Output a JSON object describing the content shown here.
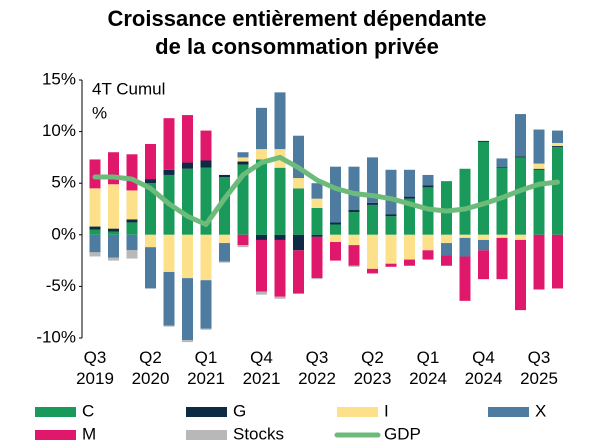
{
  "chart_data": {
    "type": "bar",
    "title": [
      "Croissance entièrement dépendante",
      "de la consommation privée"
    ],
    "annotations": [
      "4T Cumul",
      "%"
    ],
    "categories": [
      "Q3 2019",
      null,
      null,
      "Q2 2020",
      null,
      null,
      "Q1 2021",
      null,
      null,
      "Q4 2021",
      null,
      null,
      "Q3 2022",
      null,
      null,
      "Q2 2023",
      null,
      null,
      "Q1 2024",
      null,
      null,
      "Q4 2024",
      null,
      null,
      "Q3 2025",
      null
    ],
    "ylim": [
      -10,
      15
    ],
    "yticks": [
      {
        "value": 15,
        "label": "15%"
      },
      {
        "value": 10,
        "label": "10%"
      },
      {
        "value": 5,
        "label": "5%"
      },
      {
        "value": 0,
        "label": "0%"
      },
      {
        "value": -5,
        "label": "-5%"
      },
      {
        "value": -10,
        "label": "-10%"
      }
    ],
    "legend": "bottom",
    "series": [
      {
        "name": "C",
        "color": "#1a9a5a",
        "values": [
          0.5,
          0.3,
          1.2,
          5.0,
          5.8,
          6.4,
          6.5,
          5.6,
          6.8,
          7.3,
          6.5,
          4.5,
          2.6,
          1.0,
          2.2,
          2.9,
          1.8,
          3.5,
          4.6,
          5.2,
          6.4,
          9.0,
          6.5,
          7.5,
          6.3,
          8.5
        ]
      },
      {
        "name": "G",
        "color": "#0d2b45",
        "values": [
          0.3,
          0.3,
          0.3,
          0.4,
          0.5,
          0.6,
          0.7,
          0.2,
          0.3,
          -0.5,
          -0.5,
          -1.5,
          -0.2,
          0.2,
          0.2,
          0.2,
          0.2,
          0.2,
          0.2,
          0,
          0,
          0.1,
          0.1,
          0.1,
          0.1,
          0.1
        ]
      },
      {
        "name": "I",
        "color": "#fde08a",
        "values": [
          3.7,
          4.3,
          2.8,
          -1.2,
          -3.6,
          -4.2,
          -4.4,
          -0.8,
          0.4,
          1.0,
          1.8,
          1.0,
          0.9,
          -0.7,
          -1.0,
          -3.3,
          -2.8,
          -2.4,
          -1.5,
          -0.8,
          -0.3,
          -0.5,
          -0.3,
          -0.5,
          0.5,
          0.3
        ]
      },
      {
        "name": "X",
        "color": "#4e7ba0",
        "values": [
          -1.7,
          -2.2,
          -1.5,
          -4.0,
          -5.2,
          -6.0,
          -4.7,
          -1.8,
          0.5,
          4.0,
          5.5,
          4.1,
          1.5,
          5.4,
          4.2,
          4.4,
          4.3,
          2.6,
          1.0,
          -1.2,
          -1.8,
          -1.0,
          0.8,
          4.1,
          3.3,
          1.2
        ]
      },
      {
        "name": "M",
        "color": "#e0186c",
        "values": [
          2.8,
          3.1,
          3.5,
          3.4,
          5.0,
          4.6,
          2.9,
          0,
          -1.0,
          -5.0,
          -5.5,
          -4.2,
          -4.0,
          -1.8,
          -2.0,
          -0.4,
          -0.3,
          -0.6,
          -0.9,
          -1.0,
          -4.3,
          -2.8,
          -4.0,
          -6.8,
          -5.3,
          -5.2
        ]
      },
      {
        "name": "Stocks",
        "color": "#b8b8b8",
        "values": [
          -0.4,
          -0.3,
          -0.8,
          0,
          -0.1,
          -0.2,
          -0.1,
          -0.1,
          -0.2,
          -0.3,
          -0.2,
          0,
          -0.1,
          0,
          -0.1,
          -0.1,
          0,
          0,
          0,
          0,
          0,
          0,
          0,
          0,
          0,
          0
        ]
      },
      {
        "name": "GDP",
        "type": "line",
        "color": "#6dbb7a",
        "values": [
          5.6,
          5.6,
          5.4,
          4.5,
          3.0,
          1.8,
          1.0,
          3.5,
          5.8,
          7.0,
          7.5,
          6.5,
          5.3,
          4.5,
          4.0,
          3.8,
          3.5,
          3.0,
          2.5,
          2.3,
          2.5,
          3.0,
          3.6,
          4.3,
          4.9,
          5.1
        ]
      }
    ]
  }
}
